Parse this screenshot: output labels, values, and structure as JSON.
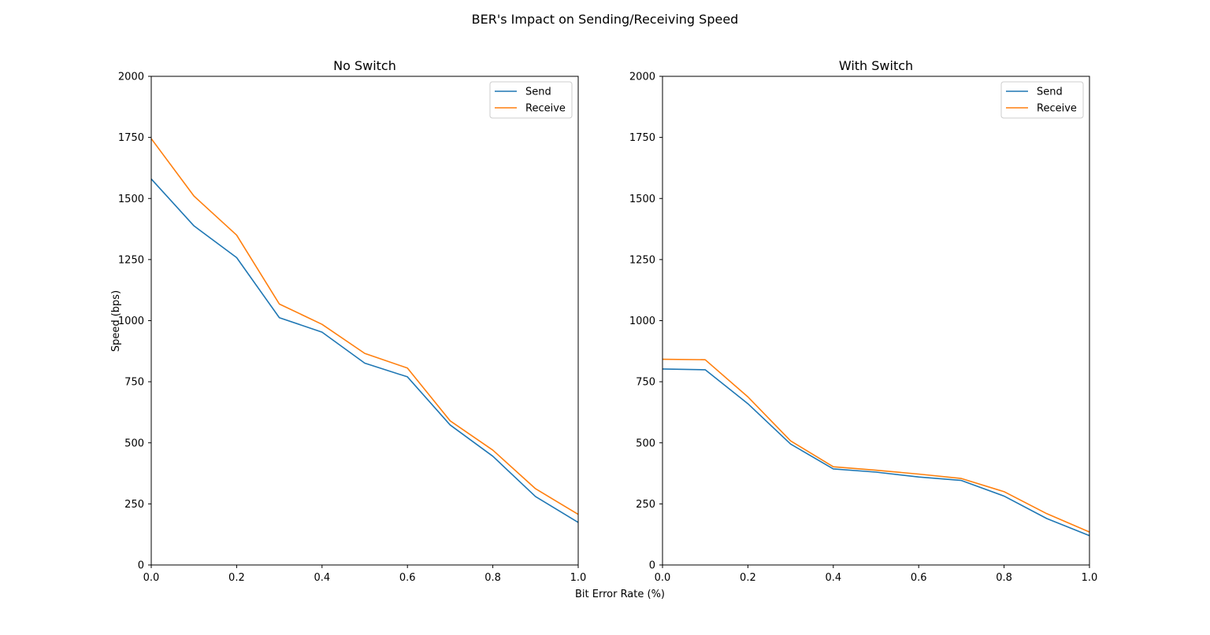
{
  "figure": {
    "title": "BER's Impact on Sending/Receiving Speed",
    "xlabel": "Bit Error Rate (%)",
    "ylabel": "Speed (bps)"
  },
  "chart_data": [
    {
      "type": "line",
      "title": "No Switch",
      "x": [
        0.0,
        0.1,
        0.2,
        0.3,
        0.4,
        0.5,
        0.6,
        0.7,
        0.8,
        0.9,
        1.0
      ],
      "xlim": [
        0.0,
        1.0
      ],
      "ylim": [
        0,
        2000
      ],
      "xticks": [
        "0.0",
        "0.2",
        "0.4",
        "0.6",
        "0.8",
        "1.0"
      ],
      "yticks": [
        "0",
        "250",
        "500",
        "750",
        "1000",
        "1250",
        "1500",
        "1750",
        "2000"
      ],
      "legend_position": "top-right",
      "grid": false,
      "series": [
        {
          "name": "Send",
          "color": "#1f77b4",
          "values": [
            1580,
            1388,
            1258,
            1012,
            953,
            826,
            770,
            573,
            445,
            280,
            174
          ]
        },
        {
          "name": "Receive",
          "color": "#ff7f0e",
          "values": [
            1745,
            1510,
            1350,
            1068,
            985,
            866,
            806,
            590,
            470,
            312,
            207
          ]
        }
      ]
    },
    {
      "type": "line",
      "title": "With Switch",
      "x": [
        0.0,
        0.1,
        0.2,
        0.3,
        0.4,
        0.5,
        0.6,
        0.7,
        0.8,
        0.9,
        1.0
      ],
      "xlim": [
        0.0,
        1.0
      ],
      "ylim": [
        0,
        2000
      ],
      "xticks": [
        "0.0",
        "0.2",
        "0.4",
        "0.6",
        "0.8",
        "1.0"
      ],
      "yticks": [
        "0",
        "250",
        "500",
        "750",
        "1000",
        "1250",
        "1500",
        "1750",
        "2000"
      ],
      "legend_position": "top-right",
      "grid": false,
      "series": [
        {
          "name": "Send",
          "color": "#1f77b4",
          "values": [
            802,
            799,
            660,
            495,
            393,
            380,
            360,
            346,
            282,
            190,
            120
          ]
        },
        {
          "name": "Receive",
          "color": "#ff7f0e",
          "values": [
            842,
            840,
            688,
            508,
            402,
            388,
            372,
            354,
            300,
            210,
            135
          ]
        }
      ]
    }
  ]
}
